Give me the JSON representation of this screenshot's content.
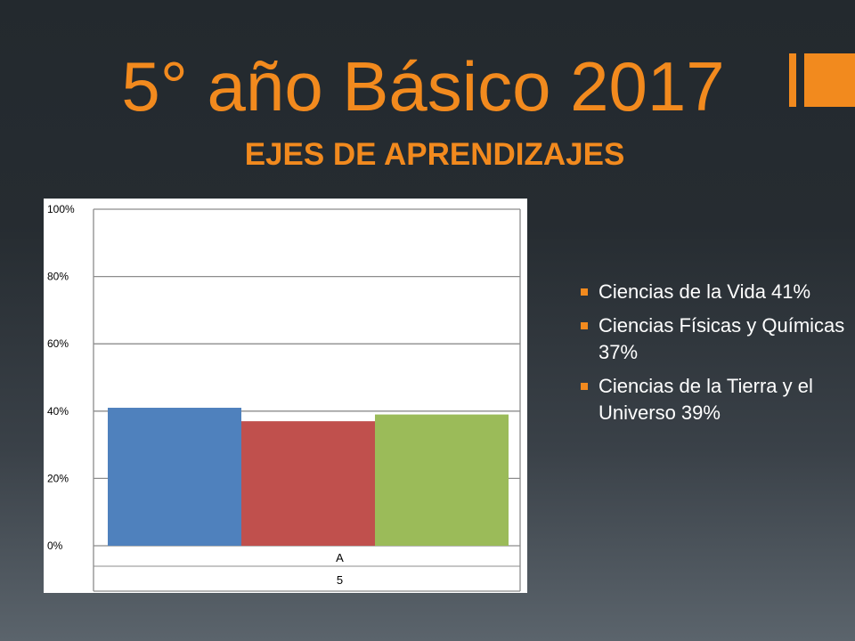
{
  "slide": {
    "title": "5° año Básico 2017",
    "subtitle": "EJES DE APRENDIZAJES",
    "accent_color": "#f28a1e"
  },
  "bullets": [
    "Ciencias de la Vida 41%",
    "Ciencias Físicas y Químicas 37%",
    "Ciencias de la Tierra y el Universo 39%"
  ],
  "chart_data": {
    "type": "bar",
    "categories": [
      "A"
    ],
    "category_sublabels": [
      "5"
    ],
    "series": [
      {
        "values": [
          41
        ],
        "color": "#4f81bd"
      },
      {
        "values": [
          37
        ],
        "color": "#c0504d"
      },
      {
        "values": [
          39
        ],
        "color": "#9bbb59"
      }
    ],
    "ylim": [
      0,
      100
    ],
    "yticks": [
      "0%",
      "20%",
      "40%",
      "60%",
      "80%",
      "100%"
    ],
    "grid": true
  }
}
